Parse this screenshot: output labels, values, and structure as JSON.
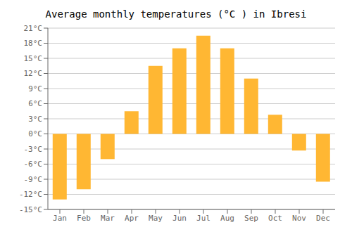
{
  "chart_data": {
    "type": "bar",
    "title": "Average monthly temperatures (°C ) in Ibresi",
    "categories": [
      "Jan",
      "Feb",
      "Mar",
      "Apr",
      "May",
      "Jun",
      "Jul",
      "Aug",
      "Sep",
      "Oct",
      "Nov",
      "Dec"
    ],
    "values": [
      -13,
      -11,
      -5,
      4.5,
      13.5,
      17,
      19.5,
      17,
      11,
      3.8,
      -3.3,
      -9.5
    ],
    "color": "#FFB733",
    "ylim": [
      -15,
      21
    ],
    "yticks": [
      {
        "value": -15,
        "label": "-15°C"
      },
      {
        "value": -12,
        "label": "-12°C"
      },
      {
        "value": -9,
        "label": "-9°C"
      },
      {
        "value": -6,
        "label": "-6°C"
      },
      {
        "value": -3,
        "label": "-3°C"
      },
      {
        "value": 0,
        "label": "0°C"
      },
      {
        "value": 3,
        "label": "3°C"
      },
      {
        "value": 6,
        "label": "6°C"
      },
      {
        "value": 9,
        "label": "9°C"
      },
      {
        "value": 12,
        "label": "12°C"
      },
      {
        "value": 15,
        "label": "15°C"
      },
      {
        "value": 18,
        "label": "18°C"
      },
      {
        "value": 21,
        "label": "21°C"
      }
    ],
    "grid": true
  }
}
